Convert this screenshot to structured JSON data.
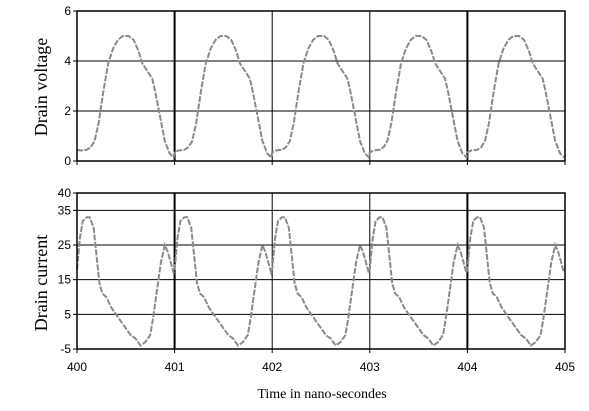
{
  "chart_data": [
    {
      "type": "line",
      "ylabel": "Drain voltage",
      "xlabel": "",
      "xlim": [
        400,
        405
      ],
      "ylim": [
        0,
        6
      ],
      "yticks": [
        0,
        2,
        4,
        6
      ],
      "xticks": [
        400,
        401,
        402,
        403,
        404,
        405
      ],
      "grid": true,
      "series": [
        {
          "x": [
            400.0,
            400.04,
            400.1,
            400.14,
            400.18,
            400.22,
            400.27,
            400.32,
            400.37,
            400.42,
            400.47,
            400.53,
            400.58,
            400.63,
            400.67,
            400.72,
            400.77,
            400.8,
            400.86,
            400.9,
            400.95,
            400.99,
            401.0,
            401.04,
            401.1,
            401.14,
            401.18,
            401.22,
            401.27,
            401.32,
            401.37,
            401.42,
            401.47,
            401.53,
            401.58,
            401.63,
            401.67,
            401.72,
            401.77,
            401.8,
            401.86,
            401.9,
            401.95,
            401.99,
            402.0,
            402.04,
            402.1,
            402.14,
            402.18,
            402.22,
            402.27,
            402.32,
            402.37,
            402.42,
            402.47,
            402.53,
            402.58,
            402.63,
            402.67,
            402.72,
            402.77,
            402.8,
            402.86,
            402.9,
            402.95,
            402.99,
            403.0,
            403.04,
            403.1,
            403.14,
            403.18,
            403.22,
            403.27,
            403.32,
            403.37,
            403.42,
            403.47,
            403.53,
            403.58,
            403.63,
            403.67,
            403.72,
            403.77,
            403.8,
            403.86,
            403.9,
            403.95,
            403.99,
            404.0,
            404.04,
            404.1,
            404.14,
            404.18,
            404.22,
            404.27,
            404.32,
            404.37,
            404.42,
            404.47,
            404.53,
            404.58,
            404.63,
            404.67,
            404.72,
            404.77,
            404.8,
            404.86,
            404.9,
            404.95,
            404.99
          ],
          "y": [
            0.45,
            0.42,
            0.45,
            0.55,
            0.8,
            1.5,
            2.8,
            3.9,
            4.5,
            4.85,
            5.0,
            5.0,
            4.85,
            4.4,
            3.9,
            3.6,
            3.3,
            2.8,
            1.6,
            0.8,
            0.3,
            0.15,
            0.35,
            0.42,
            0.45,
            0.55,
            0.8,
            1.5,
            2.8,
            3.9,
            4.5,
            4.85,
            5.0,
            5.0,
            4.85,
            4.4,
            3.9,
            3.6,
            3.3,
            2.8,
            1.6,
            0.8,
            0.3,
            0.15,
            0.35,
            0.42,
            0.45,
            0.55,
            0.8,
            1.5,
            2.8,
            3.9,
            4.5,
            4.85,
            5.0,
            5.0,
            4.85,
            4.4,
            3.9,
            3.6,
            3.3,
            2.8,
            1.6,
            0.8,
            0.3,
            0.15,
            0.35,
            0.42,
            0.45,
            0.55,
            0.8,
            1.5,
            2.8,
            3.9,
            4.5,
            4.85,
            5.0,
            5.0,
            4.85,
            4.4,
            3.9,
            3.6,
            3.3,
            2.8,
            1.6,
            0.8,
            0.3,
            0.15,
            0.35,
            0.42,
            0.45,
            0.55,
            0.8,
            1.5,
            2.8,
            3.9,
            4.5,
            4.85,
            5.0,
            5.0,
            4.85,
            4.4,
            3.9,
            3.6,
            3.3,
            2.8,
            1.6,
            0.8,
            0.3,
            0.15
          ]
        }
      ]
    },
    {
      "type": "line",
      "ylabel": "Drain current",
      "xlabel": "Time in nano-secondes",
      "xlim": [
        400,
        405
      ],
      "ylim": [
        -5,
        40
      ],
      "yticks": [
        -5,
        5,
        15,
        25,
        35,
        40
      ],
      "xticks": [
        400,
        401,
        402,
        403,
        404,
        405
      ],
      "grid": true,
      "series": [
        {
          "x": [
            400.0,
            400.03,
            400.06,
            400.1,
            400.13,
            400.17,
            400.2,
            400.23,
            400.26,
            400.3,
            400.35,
            400.4,
            400.45,
            400.5,
            400.55,
            400.6,
            400.65,
            400.7,
            400.75,
            400.78,
            400.82,
            400.86,
            400.9,
            400.93,
            400.96,
            400.99,
            401.0,
            401.03,
            401.06,
            401.1,
            401.13,
            401.17,
            401.2,
            401.23,
            401.26,
            401.3,
            401.35,
            401.4,
            401.45,
            401.5,
            401.55,
            401.6,
            401.65,
            401.7,
            401.75,
            401.78,
            401.82,
            401.86,
            401.9,
            401.93,
            401.96,
            401.99,
            402.0,
            402.03,
            402.06,
            402.1,
            402.13,
            402.17,
            402.2,
            402.23,
            402.26,
            402.3,
            402.35,
            402.4,
            402.45,
            402.5,
            402.55,
            402.6,
            402.65,
            402.7,
            402.75,
            402.78,
            402.82,
            402.86,
            402.9,
            402.93,
            402.96,
            402.99,
            403.0,
            403.03,
            403.06,
            403.1,
            403.13,
            403.17,
            403.2,
            403.23,
            403.26,
            403.3,
            403.35,
            403.4,
            403.45,
            403.5,
            403.55,
            403.6,
            403.65,
            403.7,
            403.75,
            403.78,
            403.82,
            403.86,
            403.9,
            403.93,
            403.96,
            403.99,
            404.0,
            404.03,
            404.06,
            404.1,
            404.13,
            404.17,
            404.2,
            404.23,
            404.26,
            404.3,
            404.35,
            404.4,
            404.45,
            404.5,
            404.55,
            404.6,
            404.65,
            404.7,
            404.75,
            404.78,
            404.82,
            404.86,
            404.9,
            404.93,
            404.96,
            404.99
          ],
          "y": [
            18,
            27,
            32,
            33,
            33,
            30,
            22,
            14,
            11,
            10,
            7,
            5,
            3,
            1,
            -1,
            -2,
            -4,
            -3,
            -1,
            4,
            12,
            20,
            25,
            23,
            20,
            17,
            18,
            27,
            32,
            33,
            33,
            30,
            22,
            14,
            11,
            10,
            7,
            5,
            3,
            1,
            -1,
            -2,
            -4,
            -3,
            -1,
            4,
            12,
            20,
            25,
            23,
            20,
            17,
            18,
            27,
            32,
            33,
            33,
            30,
            22,
            14,
            11,
            10,
            7,
            5,
            3,
            1,
            -1,
            -2,
            -4,
            -3,
            -1,
            4,
            12,
            20,
            25,
            23,
            20,
            17,
            18,
            27,
            32,
            33,
            33,
            30,
            22,
            14,
            11,
            10,
            7,
            5,
            3,
            1,
            -1,
            -2,
            -4,
            -3,
            -1,
            4,
            12,
            20,
            25,
            23,
            20,
            17,
            18,
            27,
            32,
            33,
            33,
            30,
            22,
            14,
            11,
            10,
            7,
            5,
            3,
            1,
            -1,
            -2,
            -4,
            -3,
            -1,
            4,
            12,
            20,
            25,
            23,
            20,
            17
          ]
        }
      ]
    }
  ],
  "colors": {
    "trace": "#8a8a8a",
    "frame": "#000000",
    "grid": "#000000"
  }
}
